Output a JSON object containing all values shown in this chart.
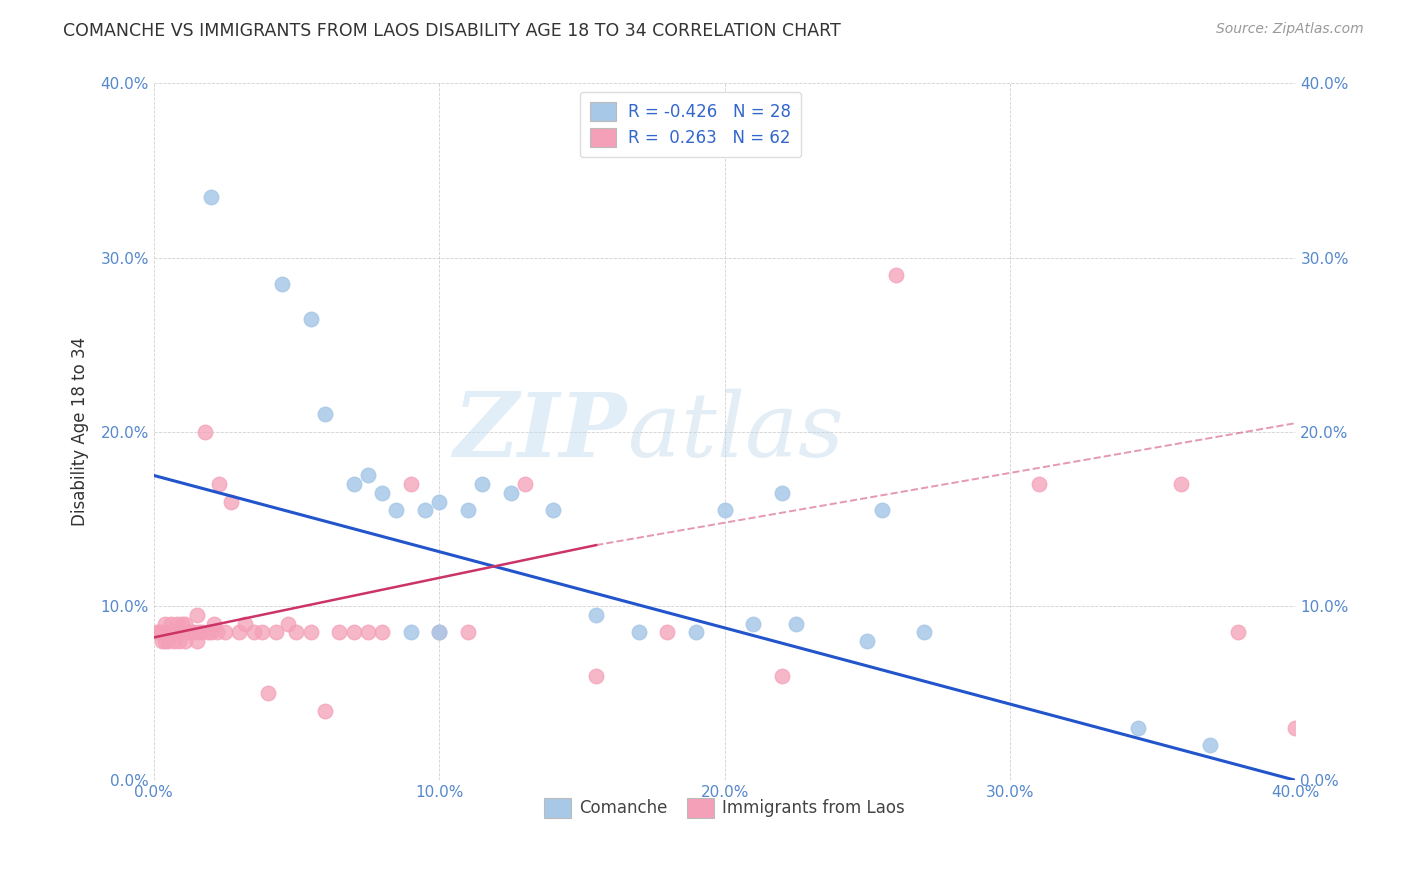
{
  "title": "COMANCHE VS IMMIGRANTS FROM LAOS DISABILITY AGE 18 TO 34 CORRELATION CHART",
  "source": "Source: ZipAtlas.com",
  "ylabel": "Disability Age 18 to 34",
  "xlim": [
    0.0,
    0.4
  ],
  "ylim": [
    0.0,
    0.4
  ],
  "xticks": [
    0.0,
    0.1,
    0.2,
    0.3,
    0.4
  ],
  "yticks": [
    0.0,
    0.1,
    0.2,
    0.3,
    0.4
  ],
  "watermark_zip": "ZIP",
  "watermark_atlas": "atlas",
  "legend1_label": "Comanche",
  "legend2_label": "Immigrants from Laos",
  "r1": -0.426,
  "n1": 28,
  "r2": 0.263,
  "n2": 62,
  "color1": "#a8c8e8",
  "color2": "#f4a0b8",
  "line_color1": "#2255cc",
  "line_color2": "#cc3366",
  "comanche_x": [
    0.02,
    0.045,
    0.055,
    0.06,
    0.07,
    0.075,
    0.08,
    0.085,
    0.09,
    0.095,
    0.1,
    0.1,
    0.11,
    0.115,
    0.125,
    0.14,
    0.155,
    0.17,
    0.19,
    0.2,
    0.21,
    0.22,
    0.225,
    0.25,
    0.255,
    0.27,
    0.345,
    0.37
  ],
  "comanche_y": [
    0.335,
    0.285,
    0.265,
    0.21,
    0.17,
    0.175,
    0.165,
    0.155,
    0.085,
    0.155,
    0.16,
    0.085,
    0.155,
    0.17,
    0.165,
    0.155,
    0.095,
    0.085,
    0.085,
    0.155,
    0.09,
    0.165,
    0.09,
    0.08,
    0.155,
    0.085,
    0.03,
    0.02
  ],
  "laos_x": [
    0.001,
    0.002,
    0.003,
    0.003,
    0.004,
    0.004,
    0.005,
    0.005,
    0.006,
    0.006,
    0.007,
    0.007,
    0.008,
    0.008,
    0.009,
    0.009,
    0.01,
    0.01,
    0.011,
    0.011,
    0.012,
    0.012,
    0.013,
    0.014,
    0.015,
    0.015,
    0.016,
    0.017,
    0.018,
    0.019,
    0.02,
    0.021,
    0.022,
    0.023,
    0.025,
    0.027,
    0.03,
    0.032,
    0.035,
    0.038,
    0.04,
    0.043,
    0.047,
    0.05,
    0.055,
    0.06,
    0.065,
    0.07,
    0.075,
    0.08,
    0.09,
    0.1,
    0.11,
    0.13,
    0.155,
    0.18,
    0.22,
    0.26,
    0.31,
    0.36,
    0.38,
    0.4
  ],
  "laos_y": [
    0.085,
    0.085,
    0.085,
    0.08,
    0.09,
    0.08,
    0.085,
    0.08,
    0.09,
    0.085,
    0.085,
    0.08,
    0.085,
    0.09,
    0.085,
    0.08,
    0.09,
    0.085,
    0.09,
    0.08,
    0.085,
    0.085,
    0.085,
    0.085,
    0.095,
    0.08,
    0.085,
    0.085,
    0.2,
    0.085,
    0.085,
    0.09,
    0.085,
    0.17,
    0.085,
    0.16,
    0.085,
    0.09,
    0.085,
    0.085,
    0.05,
    0.085,
    0.09,
    0.085,
    0.085,
    0.04,
    0.085,
    0.085,
    0.085,
    0.085,
    0.17,
    0.085,
    0.085,
    0.17,
    0.06,
    0.085,
    0.06,
    0.29,
    0.17,
    0.17,
    0.085,
    0.03
  ],
  "line1_x0": 0.0,
  "line1_y0": 0.175,
  "line1_x1": 0.4,
  "line1_y1": 0.0,
  "line2_solid_x0": 0.0,
  "line2_solid_y0": 0.082,
  "line2_solid_x1": 0.155,
  "line2_solid_y1": 0.135,
  "line2_dash_x0": 0.155,
  "line2_dash_y0": 0.135,
  "line2_dash_x1": 0.4,
  "line2_dash_y1": 0.205
}
